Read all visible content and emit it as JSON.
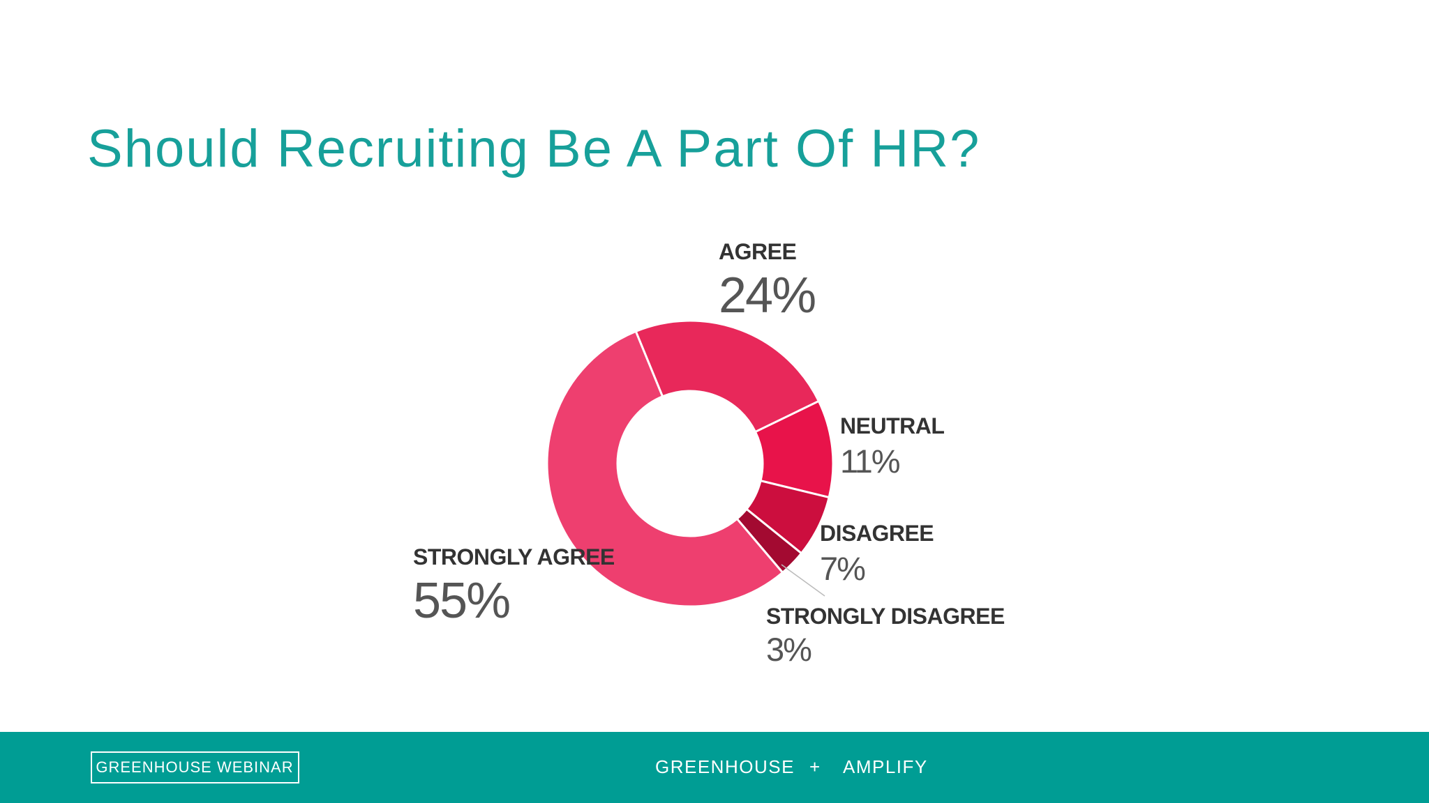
{
  "chart_data": {
    "type": "pie",
    "title": "Should Recruiting Be A Part Of HR?",
    "categories": [
      "AGREE",
      "NEUTRAL",
      "DISAGREE",
      "STRONGLY DISAGREE",
      "STRONGLY AGREE"
    ],
    "values": [
      24,
      11,
      7,
      3,
      55
    ],
    "value_labels": [
      "24%",
      "11%",
      "7%",
      "3%",
      "55%"
    ],
    "colors": [
      "#e8285a",
      "#e8134a",
      "#cc0e3e",
      "#a30a31",
      "#ee3f6f"
    ]
  },
  "footer": {
    "badge": "GREENHOUSE WEBINAR",
    "left": "GREENHOUSE",
    "separator": "+",
    "right": "AMPLIFY"
  }
}
